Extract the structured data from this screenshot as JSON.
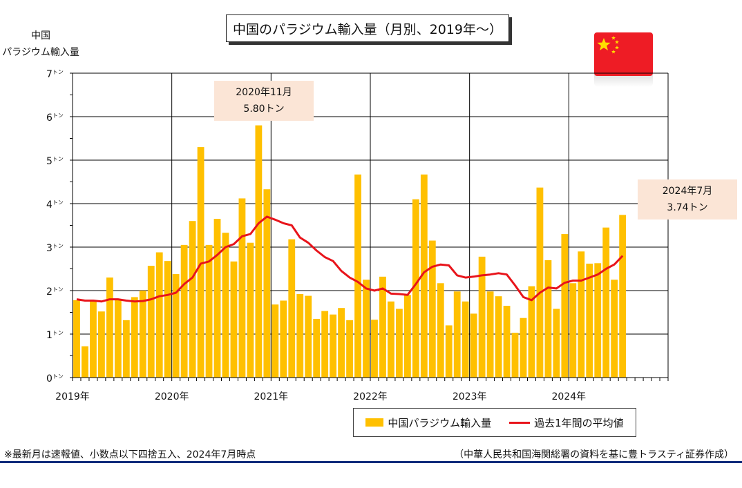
{
  "title": "中国のパラジウム輸入量（月別、2019年〜）",
  "y_label_line1": "中国",
  "y_label_line2": "パラジウム輸入量",
  "callout_peak": {
    "line1": "2020年11月",
    "line2": "5.80トン"
  },
  "callout_latest": {
    "line1": "2024年7月",
    "line2": "3.74トン"
  },
  "legend": {
    "bar": "中国パラジウム輸入量",
    "line": "過去1年間の平均値"
  },
  "footnote_left": "※最新月は速報値、小数点以下四捨五入、2024年7月時点",
  "footnote_right": "（中華人民共和国海関総署の資料を基に豊トラスティ証券作成）",
  "colors": {
    "bar": "#ffc000",
    "line": "#e8141b",
    "flag": "#ee1c25",
    "star": "#ffde00",
    "callout": "#fbe5d6",
    "rule": "#0c2a7a"
  },
  "chart_data": {
    "type": "bar",
    "title": "中国のパラジウム輸入量（月別、2019年〜）",
    "ylabel": "中国 パラジウム輸入量",
    "ylim": [
      0,
      7
    ],
    "y_ticks": [
      0,
      1,
      2,
      3,
      4,
      5,
      6,
      7
    ],
    "y_tick_unit": "トン",
    "x_ticks": [
      "2019年",
      "2020年",
      "2021年",
      "2022年",
      "2023年",
      "2024年"
    ],
    "x_range_months": "2019-01 to 2024-12",
    "grid": true,
    "legend_position": "bottom-right",
    "series": [
      {
        "name": "中国パラジウム輸入量",
        "type": "bar",
        "months": [
          "2019-01",
          "2019-02",
          "2019-03",
          "2019-04",
          "2019-05",
          "2019-06",
          "2019-07",
          "2019-08",
          "2019-09",
          "2019-10",
          "2019-11",
          "2019-12",
          "2020-01",
          "2020-02",
          "2020-03",
          "2020-04",
          "2020-05",
          "2020-06",
          "2020-07",
          "2020-08",
          "2020-09",
          "2020-10",
          "2020-11",
          "2020-12",
          "2021-01",
          "2021-02",
          "2021-03",
          "2021-04",
          "2021-05",
          "2021-06",
          "2021-07",
          "2021-08",
          "2021-09",
          "2021-10",
          "2021-11",
          "2021-12",
          "2022-01",
          "2022-02",
          "2022-03",
          "2022-04",
          "2022-05",
          "2022-06",
          "2022-07",
          "2022-08",
          "2022-09",
          "2022-10",
          "2022-11",
          "2022-12",
          "2023-01",
          "2023-02",
          "2023-03",
          "2023-04",
          "2023-05",
          "2023-06",
          "2023-07",
          "2023-08",
          "2023-09",
          "2023-10",
          "2023-11",
          "2023-12",
          "2024-01",
          "2024-02",
          "2024-03",
          "2024-04",
          "2024-05",
          "2024-06",
          "2024-07"
        ],
        "values": [
          1.78,
          0.72,
          1.75,
          1.52,
          2.3,
          1.8,
          1.32,
          1.85,
          2.0,
          2.57,
          2.88,
          2.68,
          2.38,
          3.05,
          3.6,
          5.3,
          3.05,
          3.65,
          3.33,
          2.67,
          4.12,
          3.1,
          5.8,
          4.33,
          1.68,
          1.77,
          3.18,
          1.92,
          1.88,
          1.35,
          1.53,
          1.45,
          1.6,
          1.32,
          4.67,
          2.25,
          1.33,
          2.32,
          1.75,
          1.58,
          1.9,
          4.1,
          4.67,
          3.15,
          2.17,
          1.2,
          1.98,
          1.75,
          1.47,
          2.78,
          1.98,
          1.87,
          1.65,
          1.03,
          1.37,
          2.1,
          4.37,
          2.7,
          1.58,
          3.3,
          2.17,
          2.9,
          2.62,
          2.63,
          3.45,
          2.25,
          3.74
        ]
      },
      {
        "name": "過去1年間の平均値",
        "type": "line",
        "values": [
          1.8,
          1.77,
          1.77,
          1.75,
          1.8,
          1.8,
          1.77,
          1.75,
          1.76,
          1.8,
          1.87,
          1.9,
          1.95,
          2.15,
          2.3,
          2.62,
          2.67,
          2.82,
          3.0,
          3.07,
          3.25,
          3.3,
          3.55,
          3.7,
          3.63,
          3.55,
          3.5,
          3.22,
          3.1,
          2.92,
          2.77,
          2.68,
          2.45,
          2.3,
          2.2,
          2.05,
          2.0,
          2.05,
          1.93,
          1.92,
          1.9,
          2.15,
          2.42,
          2.55,
          2.6,
          2.58,
          2.35,
          2.3,
          2.32,
          2.35,
          2.37,
          2.4,
          2.37,
          2.12,
          1.85,
          1.78,
          1.95,
          2.07,
          2.05,
          2.18,
          2.23,
          2.23,
          2.3,
          2.37,
          2.5,
          2.6,
          2.8
        ]
      }
    ]
  }
}
